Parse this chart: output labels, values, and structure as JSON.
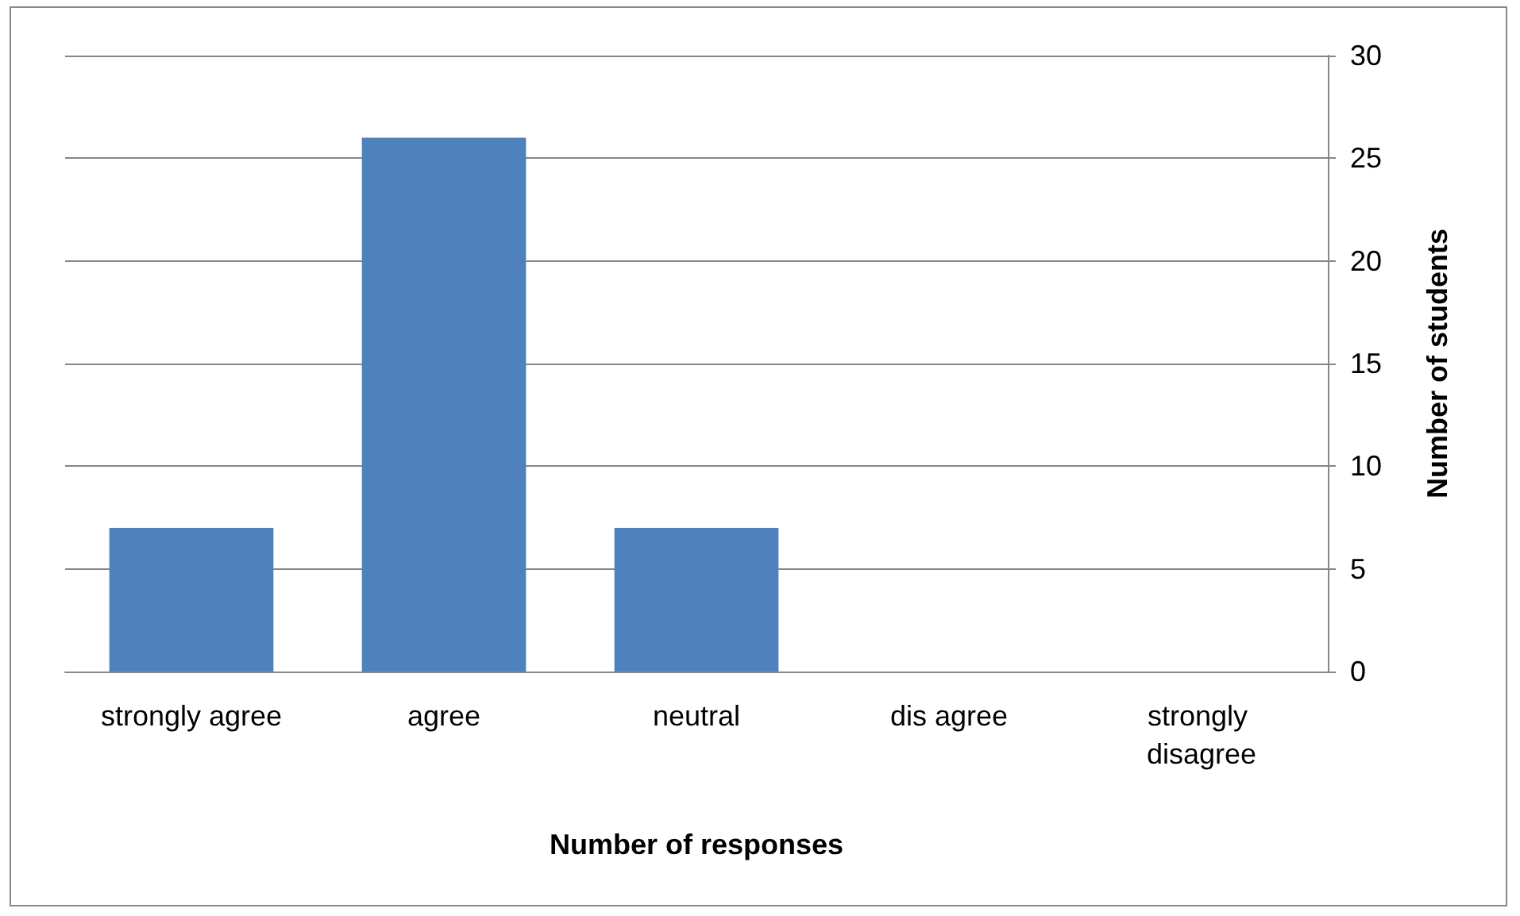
{
  "chart_data": {
    "type": "bar",
    "xlabel": "Number of responses",
    "ylabel": "Number of students",
    "categories": [
      "strongly agree",
      "agree",
      "neutral",
      "dis agree",
      "strongly disagree"
    ],
    "values": [
      7,
      26,
      7,
      0,
      0
    ],
    "color": "#4f81bd",
    "ylim": [
      0,
      30
    ],
    "yticks": [
      0,
      5,
      10,
      15,
      20,
      25,
      30
    ],
    "grid": true
  }
}
